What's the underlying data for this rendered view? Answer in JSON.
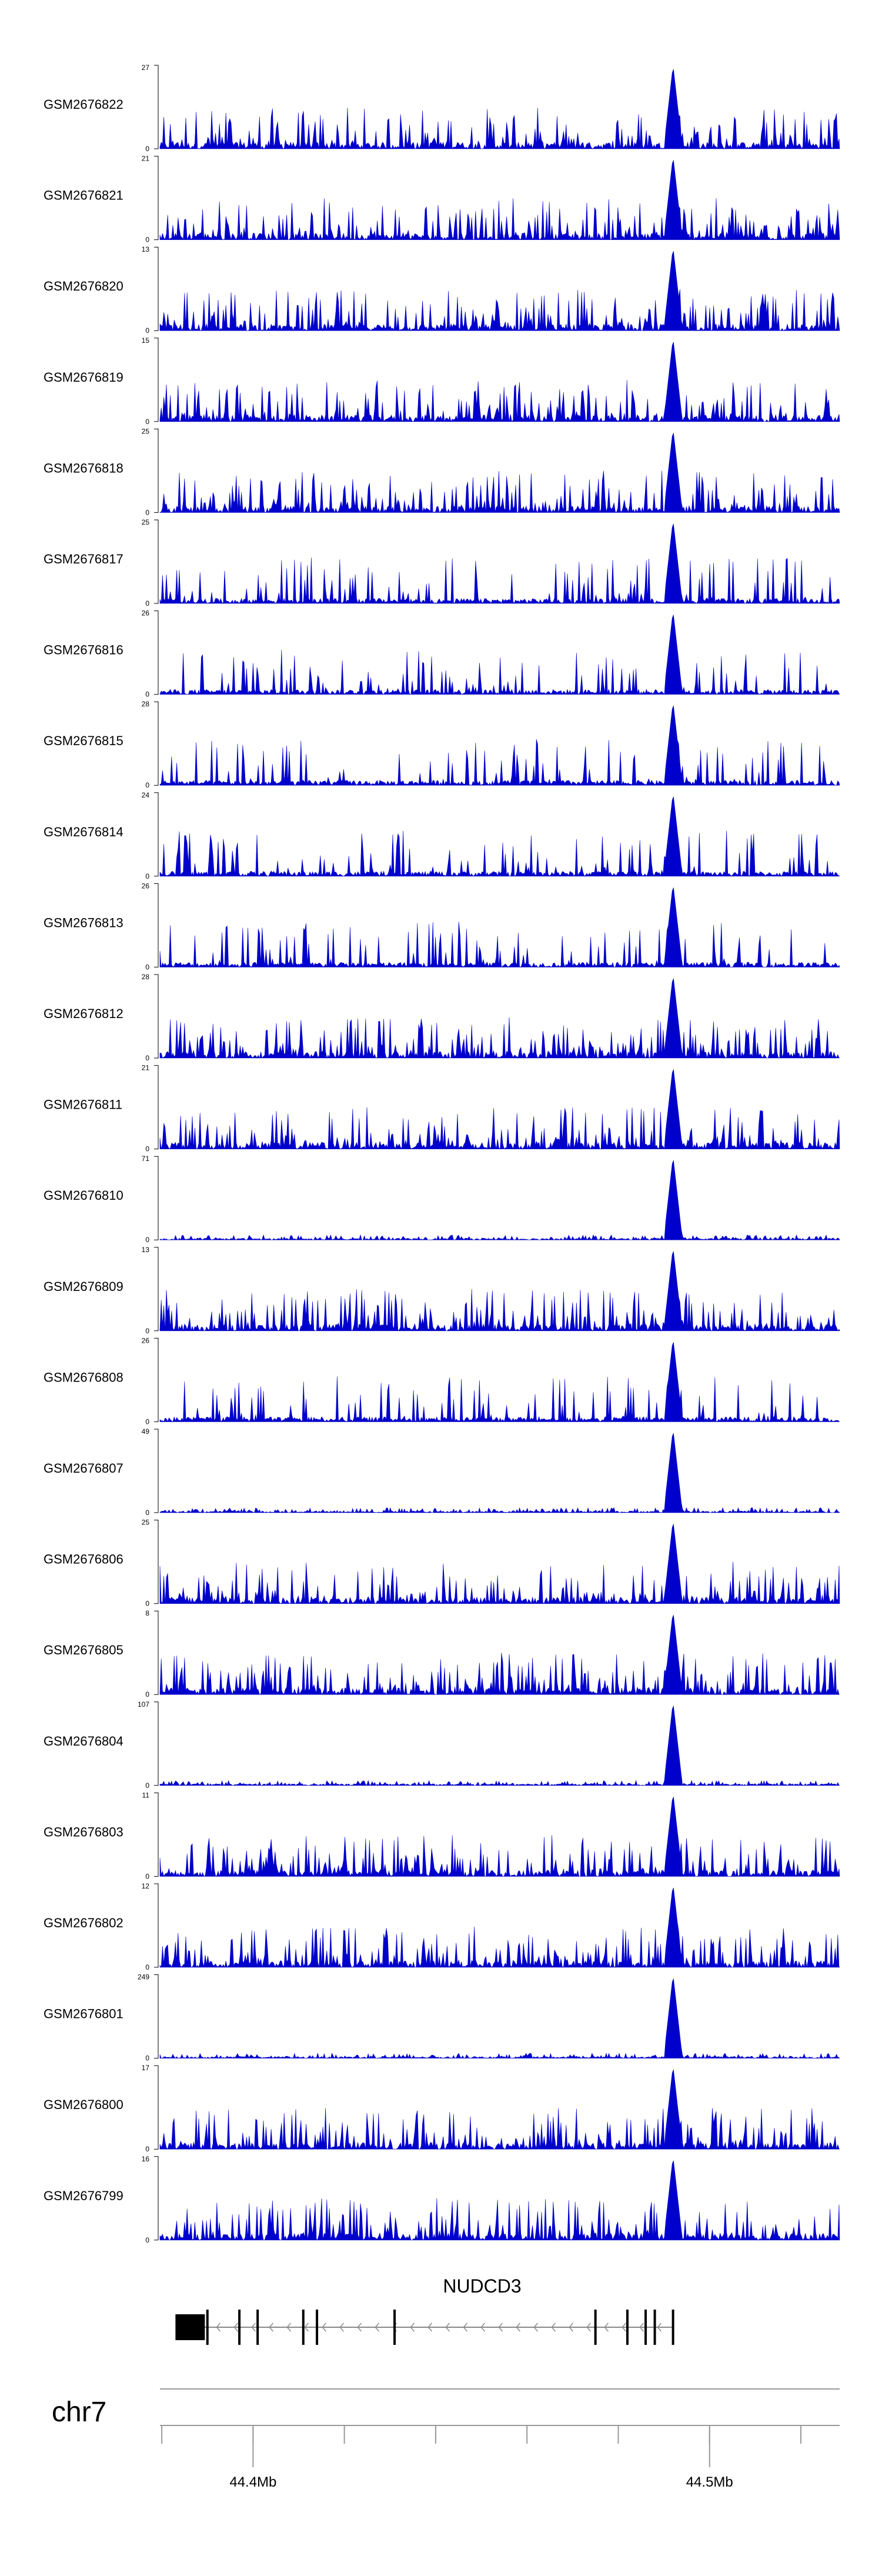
{
  "chart_data": {
    "type": "area",
    "tracks": [
      {
        "name": "GSM2676822",
        "ymax": "27",
        "ymin": "0"
      },
      {
        "name": "GSM2676821",
        "ymax": "21",
        "ymin": "0"
      },
      {
        "name": "GSM2676820",
        "ymax": "13",
        "ymin": "0"
      },
      {
        "name": "GSM2676819",
        "ymax": "15",
        "ymin": "0"
      },
      {
        "name": "GSM2676818",
        "ymax": "25",
        "ymin": "0"
      },
      {
        "name": "GSM2676817",
        "ymax": "25",
        "ymin": "0"
      },
      {
        "name": "GSM2676816",
        "ymax": "26",
        "ymin": "0"
      },
      {
        "name": "GSM2676815",
        "ymax": "28",
        "ymin": "0"
      },
      {
        "name": "GSM2676814",
        "ymax": "24",
        "ymin": "0"
      },
      {
        "name": "GSM2676813",
        "ymax": "26",
        "ymin": "0"
      },
      {
        "name": "GSM2676812",
        "ymax": "28",
        "ymin": "0"
      },
      {
        "name": "GSM2676811",
        "ymax": "21",
        "ymin": "0"
      },
      {
        "name": "GSM2676810",
        "ymax": "71",
        "ymin": "0"
      },
      {
        "name": "GSM2676809",
        "ymax": "13",
        "ymin": "0"
      },
      {
        "name": "GSM2676808",
        "ymax": "26",
        "ymin": "0"
      },
      {
        "name": "GSM2676807",
        "ymax": "49",
        "ymin": "0"
      },
      {
        "name": "GSM2676806",
        "ymax": "25",
        "ymin": "0"
      },
      {
        "name": "GSM2676805",
        "ymax": "8",
        "ymin": "0"
      },
      {
        "name": "GSM2676804",
        "ymax": "107",
        "ymin": "0"
      },
      {
        "name": "GSM2676803",
        "ymax": "11",
        "ymin": "0"
      },
      {
        "name": "GSM2676802",
        "ymax": "12",
        "ymin": "0"
      },
      {
        "name": "GSM2676801",
        "ymax": "249",
        "ymin": "0"
      },
      {
        "name": "GSM2676800",
        "ymax": "17",
        "ymin": "0"
      },
      {
        "name": "GSM2676799",
        "ymax": "16",
        "ymin": "0"
      }
    ],
    "peak_position_mb": 44.492,
    "gene": {
      "name": "NUDCD3",
      "strand": "-",
      "start_mb": 44.383,
      "end_mb": 44.492,
      "exons_mb": [
        44.383,
        44.39,
        44.397,
        44.401,
        44.411,
        44.414,
        44.431,
        44.475,
        44.482,
        44.486,
        44.488,
        44.492
      ]
    },
    "chromosome": "chr7",
    "xlim_mb": [
      44.3796,
      44.5285
    ],
    "ticks_mb": [
      44.4,
      44.5
    ],
    "tick_labels": [
      "44.4Mb",
      "44.5Mb"
    ],
    "minor_ticks_mb": [
      44.38,
      44.4,
      44.42,
      44.44,
      44.46,
      44.48,
      44.5,
      44.52
    ],
    "color": "#0000cc"
  }
}
